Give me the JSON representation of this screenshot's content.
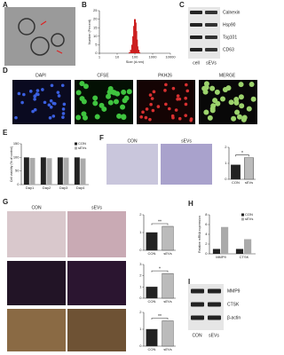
{
  "panels": {
    "letters": [
      "A",
      "B",
      "C",
      "D",
      "E",
      "F",
      "G",
      "H",
      "I"
    ],
    "C": {
      "bands": [
        "Calnexin",
        "Hsp90",
        "Tsg101",
        "CD63"
      ],
      "lanes": [
        "cell",
        "sEVs"
      ]
    },
    "D": {
      "channels": [
        "DAPI",
        "CFSE",
        "PKH26",
        "MERGE"
      ]
    },
    "F": {
      "groups": [
        "CON",
        "sEVs"
      ]
    },
    "G": {
      "groups": [
        "CON",
        "sEVs"
      ]
    },
    "I": {
      "bands": [
        "MMP9",
        "CTSK",
        "β-actin"
      ],
      "lanes": [
        "CON",
        "sEVs"
      ]
    }
  },
  "chart_data": [
    {
      "type": "bar",
      "xscale": "log",
      "x": [
        50,
        60,
        70,
        80,
        90,
        100,
        110,
        120,
        130,
        140,
        160,
        180
      ],
      "values": [
        0.5,
        2,
        5,
        10,
        16,
        20,
        18,
        13,
        8,
        4,
        2,
        0.5
      ],
      "color": "#cc1f1f",
      "xlim": [
        1,
        10000
      ],
      "xticks": [
        1,
        10,
        100,
        1000,
        10000
      ],
      "ylim": [
        0,
        25
      ],
      "yticks": [
        0,
        5,
        10,
        15,
        20,
        25
      ],
      "xlabel": "Size (d.nm)",
      "ylabel": "Number (Percent)"
    },
    {
      "type": "bar",
      "categories": [
        "Day1",
        "Day2",
        "Day3",
        "Day4"
      ],
      "series": [
        {
          "name": "CON",
          "color": "#222",
          "values": [
            100,
            100,
            100,
            100
          ]
        },
        {
          "name": "sEVs",
          "color": "#aaa",
          "values": [
            98,
            97,
            99,
            96
          ]
        }
      ],
      "ylim": [
        0,
        150
      ],
      "yticks": [
        0,
        50,
        100,
        150
      ],
      "ylabel": "Cell viability (% of control)"
    },
    {
      "type": "bar",
      "categories": [
        "CON",
        "sEVs"
      ],
      "values": [
        0.9,
        1.35
      ],
      "colors": [
        "#222",
        "#bbb"
      ],
      "ylim": [
        0,
        2
      ],
      "yticks": [
        0,
        1,
        2
      ],
      "annotation": "*"
    },
    {
      "type": "bar",
      "categories": [
        "CON",
        "sEVs"
      ],
      "values": [
        1,
        1.35
      ],
      "colors": [
        "#222",
        "#bbb"
      ],
      "ylim": [
        0,
        2
      ],
      "yticks": [
        0,
        1,
        2
      ],
      "annotation": "**"
    },
    {
      "type": "bar",
      "categories": [
        "CON",
        "sEVs"
      ],
      "values": [
        1,
        2.2
      ],
      "colors": [
        "#222",
        "#bbb"
      ],
      "ylim": [
        0,
        3
      ],
      "yticks": [
        0,
        1,
        2,
        3
      ],
      "annotation": "*"
    },
    {
      "type": "bar",
      "categories": [
        "CON",
        "sEVs"
      ],
      "values": [
        1,
        1.5
      ],
      "colors": [
        "#222",
        "#bbb"
      ],
      "ylim": [
        0,
        2
      ],
      "yticks": [
        0,
        1,
        2
      ],
      "annotation": "**"
    },
    {
      "type": "bar",
      "categories": [
        "MMP9",
        "CTSK"
      ],
      "series": [
        {
          "name": "CON",
          "color": "#222",
          "values": [
            1,
            1
          ]
        },
        {
          "name": "sEVs",
          "color": "#aaa",
          "values": [
            5.5,
            3
          ]
        }
      ],
      "ylim": [
        0,
        8
      ],
      "yticks": [
        0,
        2,
        4,
        6,
        8
      ],
      "ylabel": "Relative mRNA expression"
    }
  ]
}
